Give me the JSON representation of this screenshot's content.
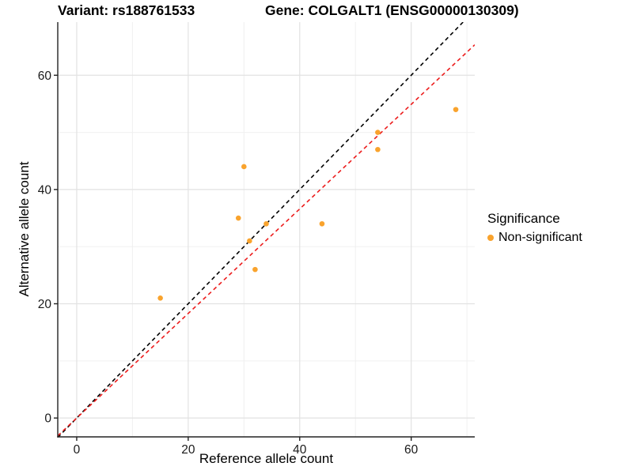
{
  "chart_data": {
    "type": "scatter",
    "title_left": "Variant: rs188761533",
    "title_right": "Gene: COLGALT1 (ENSG00000130309)",
    "xlabel": "Reference allele count",
    "ylabel": "Alternative allele count",
    "xlim": [
      -3.4,
      71.4
    ],
    "ylim": [
      -3.3,
      69.3
    ],
    "x_major_ticks": [
      0,
      20,
      40,
      60
    ],
    "y_major_ticks": [
      0,
      20,
      40,
      60
    ],
    "x_minor_breaks": [
      10,
      30,
      50,
      70
    ],
    "y_minor_breaks": [
      10,
      30,
      50
    ],
    "grid": true,
    "points": [
      {
        "x": 15,
        "y": 21
      },
      {
        "x": 29,
        "y": 35
      },
      {
        "x": 30,
        "y": 44
      },
      {
        "x": 31,
        "y": 31
      },
      {
        "x": 32,
        "y": 26
      },
      {
        "x": 34,
        "y": 34
      },
      {
        "x": 44,
        "y": 34
      },
      {
        "x": 54,
        "y": 47
      },
      {
        "x": 54,
        "y": 50
      },
      {
        "x": 68,
        "y": 54
      }
    ],
    "lines": [
      {
        "name": "identity-line",
        "slope": 1,
        "intercept": 0,
        "color": "#000000",
        "dash": "5,4"
      },
      {
        "name": "fit-line",
        "slope": 0.915,
        "intercept": 0,
        "color": "#EC1C1C",
        "dash": "5,4"
      }
    ],
    "point_color": "#F9A32D",
    "colors": {
      "grid_major": "#E2E2E2",
      "grid_minor": "#F0F0F0",
      "axis_line": "#222222",
      "tick_text": "#1A1A1A"
    },
    "legend": {
      "position": "right",
      "title": "Significance",
      "items": [
        {
          "label": "Non-significant",
          "color": "#F9A32D"
        }
      ]
    }
  }
}
